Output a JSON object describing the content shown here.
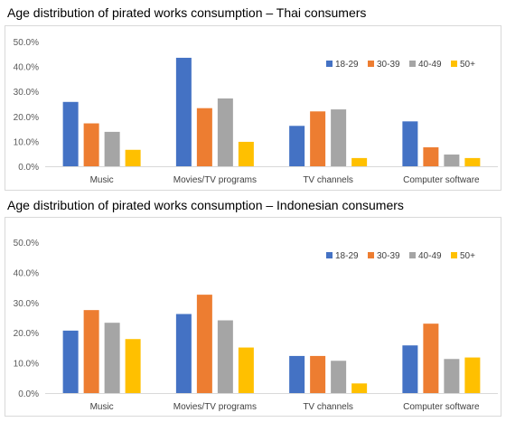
{
  "chart_data": [
    {
      "type": "bar",
      "title": "Age distribution of pirated works consumption – Thai consumers",
      "categories": [
        "Music",
        "Movies/TV programs",
        "TV channels",
        "Computer software"
      ],
      "ylim": [
        0,
        50
      ],
      "yticks": [
        "0.0%",
        "10.0%",
        "20.0%",
        "30.0%",
        "40.0%",
        "50.0%"
      ],
      "grid": false,
      "legend_position": "top-right",
      "series": [
        {
          "name": "18-29",
          "color": "#4472C4",
          "values": [
            25.8,
            43.5,
            16.2,
            18.0
          ]
        },
        {
          "name": "30-39",
          "color": "#ED7D31",
          "values": [
            17.2,
            23.3,
            22.0,
            7.6
          ]
        },
        {
          "name": "40-49",
          "color": "#A5A5A5",
          "values": [
            13.8,
            27.2,
            22.8,
            4.7
          ]
        },
        {
          "name": "50+",
          "color": "#FFC000",
          "values": [
            6.6,
            9.8,
            3.3,
            3.3
          ]
        }
      ]
    },
    {
      "type": "bar",
      "title": "Age distribution of pirated works consumption – Indonesian consumers",
      "categories": [
        "Music",
        "Movies/TV programs",
        "TV channels",
        "Computer software"
      ],
      "ylim": [
        0,
        50
      ],
      "yticks": [
        "0.0%",
        "10.0%",
        "20.0%",
        "30.0%",
        "40.0%",
        "50.0%"
      ],
      "grid": false,
      "legend_position": "top-right",
      "series": [
        {
          "name": "18-29",
          "color": "#4472C4",
          "values": [
            20.7,
            26.2,
            12.3,
            15.8
          ]
        },
        {
          "name": "30-39",
          "color": "#ED7D31",
          "values": [
            27.5,
            32.6,
            12.3,
            23.0
          ]
        },
        {
          "name": "40-49",
          "color": "#A5A5A5",
          "values": [
            23.3,
            24.1,
            10.7,
            11.3
          ]
        },
        {
          "name": "50+",
          "color": "#FFC000",
          "values": [
            17.9,
            15.1,
            3.2,
            11.8
          ]
        }
      ]
    }
  ]
}
